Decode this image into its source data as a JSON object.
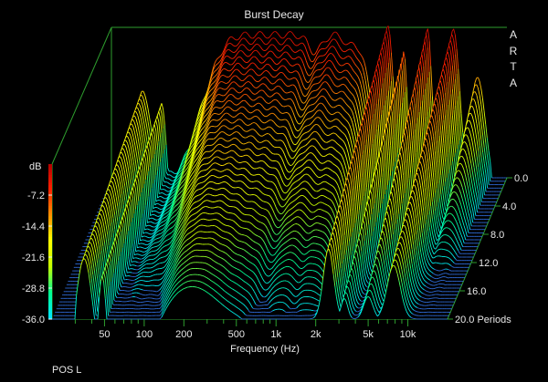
{
  "chart_data": {
    "type": "waterfall",
    "title": "Burst Decay",
    "xlabel": "Frequency (Hz)",
    "xscale": "log",
    "xlim": [
      20,
      20000
    ],
    "x_ticks": [
      50,
      100,
      200,
      500,
      1000,
      2000,
      5000,
      10000
    ],
    "x_tick_labels": [
      "50",
      "100",
      "200",
      "500",
      "1k",
      "2k",
      "5k",
      "10k"
    ],
    "z_ticks": [
      0,
      4,
      8,
      12,
      16,
      20
    ],
    "z_tick_labels": [
      "0.0",
      "4.0",
      "8.0",
      "12.0",
      "16.0",
      "20.0 Periods"
    ],
    "zlim": [
      0,
      20
    ],
    "y_ticks": [
      0,
      -7.2,
      -14.4,
      -21.6,
      -28.8,
      -36
    ],
    "y_tick_labels": [
      "-7.2",
      "-14.4",
      "-21.6",
      "-28.8",
      "-36.0"
    ],
    "ylabel": "dB",
    "ylim": [
      -36,
      0
    ],
    "colormap": [
      "#00e5ff",
      "#00ff90",
      "#c8ff00",
      "#ffff00",
      "#ff9000",
      "#ff2000",
      "#b00000"
    ],
    "front_slice_peaks_db": [
      {
        "freq": 35,
        "db": -22
      },
      {
        "freq": 50,
        "db": -26
      },
      {
        "freq": 100,
        "db": -11
      },
      {
        "freq": 200,
        "db": -5
      },
      {
        "freq": 400,
        "db": -3
      },
      {
        "freq": 1000,
        "db": -3
      },
      {
        "freq": 2500,
        "db": 0
      },
      {
        "freq": 3300,
        "db": -6
      },
      {
        "freq": 5000,
        "db": -2
      },
      {
        "freq": 8000,
        "db": -2
      }
    ]
  },
  "legend": {
    "arta": "A R T A"
  },
  "footer": {
    "text": "POS L"
  }
}
